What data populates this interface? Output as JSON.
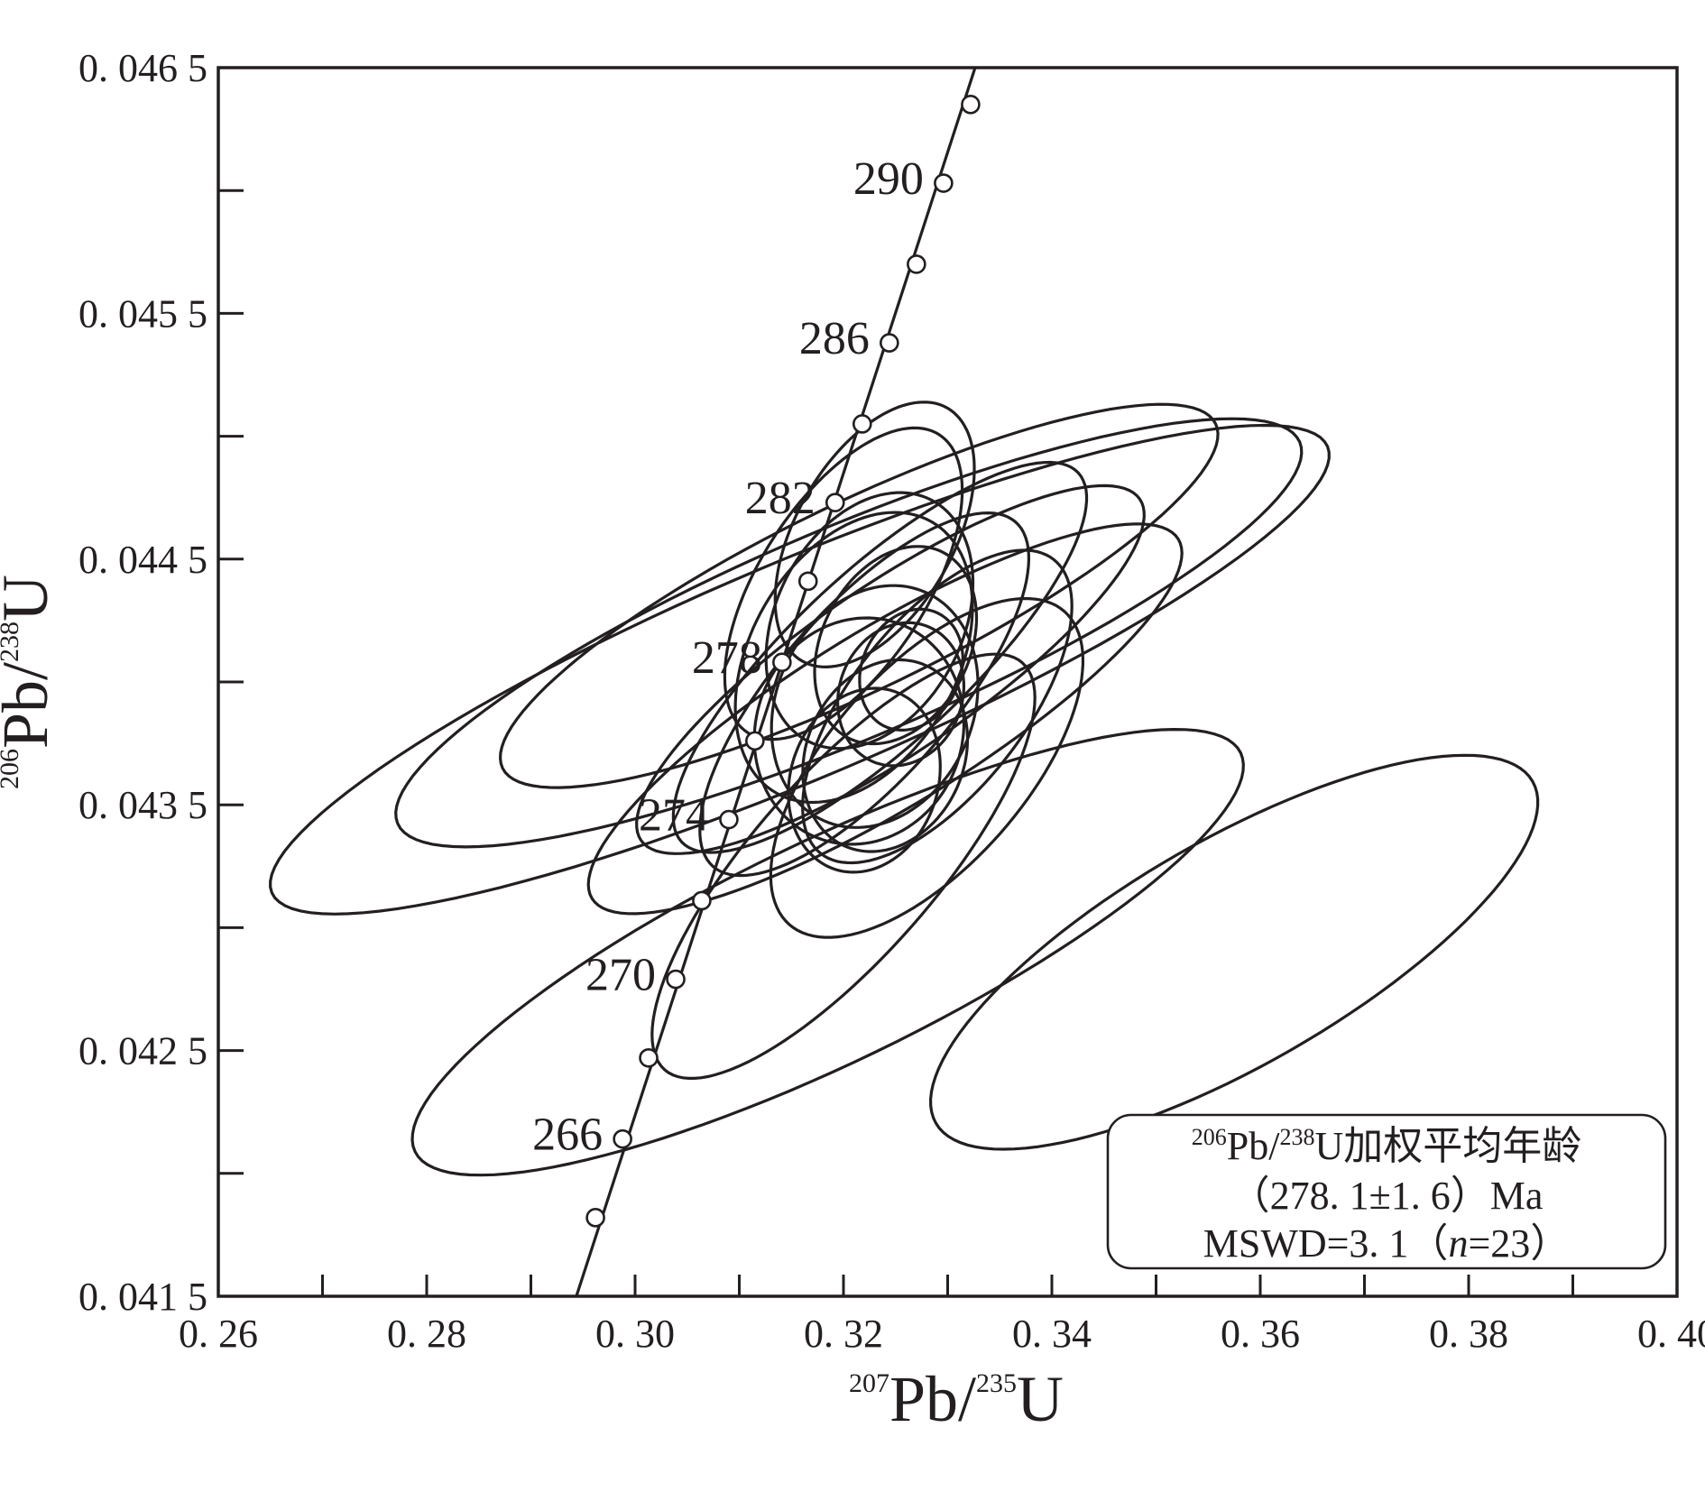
{
  "chart_data": {
    "type": "scatter",
    "subtype": "U-Pb concordia diagram with error ellipses",
    "xlabel": {
      "sup": "207",
      "main": "Pb/",
      "sup2": "235",
      "main2": "U"
    },
    "ylabel": {
      "sup": "206",
      "main": "Pb/",
      "sup2": "238",
      "main2": "U"
    },
    "xlim": [
      0.26,
      0.4
    ],
    "ylim": [
      0.0415,
      0.0465
    ],
    "x_ticks": [
      {
        "value": 0.26,
        "label": "0. 26"
      },
      {
        "value": 0.28,
        "label": "0. 28"
      },
      {
        "value": 0.3,
        "label": "0. 30"
      },
      {
        "value": 0.32,
        "label": "0. 32"
      },
      {
        "value": 0.34,
        "label": "0. 34"
      },
      {
        "value": 0.36,
        "label": "0. 36"
      },
      {
        "value": 0.38,
        "label": "0. 38"
      },
      {
        "value": 0.4,
        "label": "0. 40"
      }
    ],
    "x_minor_ticks": [
      0.27,
      0.29,
      0.31,
      0.33,
      0.35,
      0.37,
      0.39
    ],
    "y_ticks": [
      {
        "value": 0.0415,
        "label": "0. 041 5"
      },
      {
        "value": 0.0425,
        "label": "0. 042 5"
      },
      {
        "value": 0.0435,
        "label": "0. 043 5"
      },
      {
        "value": 0.0445,
        "label": "0. 044 5"
      },
      {
        "value": 0.0455,
        "label": "0. 045 5"
      },
      {
        "value": 0.0465,
        "label": "0. 046 5"
      }
    ],
    "y_minor_ticks": [
      0.042,
      0.043,
      0.044,
      0.045,
      0.046
    ],
    "grid": false,
    "concordia": {
      "curve": [
        [
          0.2936,
          0.0414
        ],
        [
          0.3334,
          0.0466
        ]
      ],
      "age_markers": [
        {
          "age": 264,
          "x": 0.2962,
          "y": 0.04182
        },
        {
          "age": 266,
          "x": 0.2988,
          "y": 0.04214,
          "label": "266"
        },
        {
          "age": 268,
          "x": 0.3013,
          "y": 0.04247
        },
        {
          "age": 270,
          "x": 0.3039,
          "y": 0.04279,
          "label": "270"
        },
        {
          "age": 272,
          "x": 0.3064,
          "y": 0.04311
        },
        {
          "age": 274,
          "x": 0.309,
          "y": 0.04344,
          "label": "274"
        },
        {
          "age": 276,
          "x": 0.3115,
          "y": 0.04376
        },
        {
          "age": 278,
          "x": 0.3141,
          "y": 0.04408,
          "label": "278"
        },
        {
          "age": 280,
          "x": 0.3166,
          "y": 0.04441
        },
        {
          "age": 282,
          "x": 0.3192,
          "y": 0.04473,
          "label": "282"
        },
        {
          "age": 284,
          "x": 0.3218,
          "y": 0.04505
        },
        {
          "age": 286,
          "x": 0.3244,
          "y": 0.04538,
          "label": "286"
        },
        {
          "age": 288,
          "x": 0.327,
          "y": 0.0457
        },
        {
          "age": 290,
          "x": 0.3296,
          "y": 0.04603,
          "label": "290"
        },
        {
          "age": 292,
          "x": 0.3322,
          "y": 0.04635
        }
      ]
    },
    "ellipses": [
      {
        "cx": 0.3158,
        "cy": 0.04405,
        "a": 0.055,
        "b": 0.00044,
        "angle": 0.4
      },
      {
        "cx": 0.3205,
        "cy": 0.0442,
        "a": 0.047,
        "b": 0.00043,
        "angle": 0.4
      },
      {
        "cx": 0.3215,
        "cy": 0.04435,
        "a": 0.038,
        "b": 0.00038,
        "angle": 0.45
      },
      {
        "cx": 0.324,
        "cy": 0.04385,
        "a": 0.033,
        "b": 0.00036,
        "angle": 0.55
      },
      {
        "cx": 0.3245,
        "cy": 0.04405,
        "a": 0.029,
        "b": 0.00034,
        "angle": 0.6
      },
      {
        "cx": 0.3235,
        "cy": 0.0441,
        "a": 0.026,
        "b": 0.00035,
        "angle": 0.75
      },
      {
        "cx": 0.322,
        "cy": 0.04395,
        "a": 0.022,
        "b": 0.00035,
        "angle": 0.85
      },
      {
        "cx": 0.321,
        "cy": 0.0441,
        "a": 0.015,
        "b": 0.00042,
        "angle": 1.05
      },
      {
        "cx": 0.3225,
        "cy": 0.04425,
        "a": 0.013,
        "b": 0.00038,
        "angle": 1.1
      },
      {
        "cx": 0.323,
        "cy": 0.0439,
        "a": 0.012,
        "b": 0.0004,
        "angle": 1.15
      },
      {
        "cx": 0.3215,
        "cy": 0.0438,
        "a": 0.011,
        "b": 0.00042,
        "angle": 1.2
      },
      {
        "cx": 0.325,
        "cy": 0.04415,
        "a": 0.01,
        "b": 0.0003,
        "angle": 1.1
      },
      {
        "cx": 0.324,
        "cy": 0.0437,
        "a": 0.0095,
        "b": 0.00032,
        "angle": 1.15
      },
      {
        "cx": 0.322,
        "cy": 0.0436,
        "a": 0.009,
        "b": 0.0003,
        "angle": 1.25
      },
      {
        "cx": 0.3255,
        "cy": 0.04395,
        "a": 0.007,
        "b": 0.00025,
        "angle": 1.2
      },
      {
        "cx": 0.3265,
        "cy": 0.04405,
        "a": 0.006,
        "b": 0.0002,
        "angle": 1.15
      },
      {
        "cx": 0.328,
        "cy": 0.04365,
        "a": 0.02,
        "b": 0.0004,
        "angle": 0.85
      },
      {
        "cx": 0.329,
        "cy": 0.0439,
        "a": 0.018,
        "b": 0.00035,
        "angle": 0.9
      },
      {
        "cx": 0.32,
        "cy": 0.0444,
        "a": 0.017,
        "b": 0.00034,
        "angle": 1.0
      },
      {
        "cx": 0.323,
        "cy": 0.0446,
        "a": 0.014,
        "b": 0.00032,
        "angle": 1.05
      },
      {
        "cx": 0.32,
        "cy": 0.04325,
        "a": 0.026,
        "b": 0.00037,
        "angle": 0.85
      },
      {
        "cx": 0.3185,
        "cy": 0.0429,
        "a": 0.044,
        "b": 0.00045,
        "angle": 0.45
      },
      {
        "cx": 0.3575,
        "cy": 0.0429,
        "a": 0.033,
        "b": 0.00046,
        "angle": 0.52
      }
    ],
    "legend": {
      "line1_sup": "206",
      "line1_a": "Pb/",
      "line1_sup2": "238",
      "line1_b": "U加权平均年龄",
      "line2": "（278. 1±1. 6）Ma",
      "line3_a": "MSWD=3. 1（",
      "line3_italic": "n",
      "line3_b": "=23）",
      "placement": "bottom-right"
    }
  }
}
